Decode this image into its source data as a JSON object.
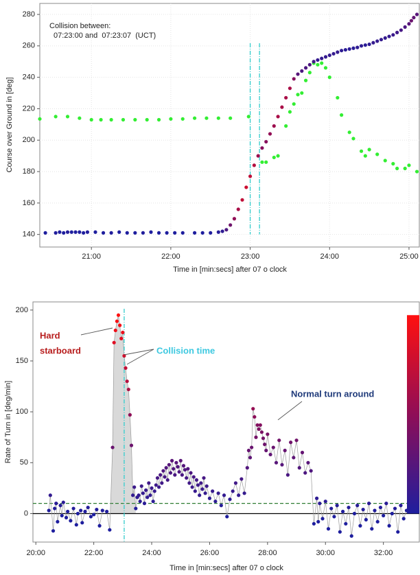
{
  "chart_data": [
    {
      "type": "scatter",
      "xlabel": "Time in [min:secs] after 07 o clock",
      "ylabel": "Course over Ground in [deg]",
      "xlim": [
        20.35,
        25.13
      ],
      "ylim": [
        132,
        287
      ],
      "xticks": [
        {
          "value": 21,
          "label": "21:00"
        },
        {
          "value": 22,
          "label": "22:00"
        },
        {
          "value": 23,
          "label": "23:00"
        },
        {
          "value": 24,
          "label": "24:00"
        },
        {
          "value": 25,
          "label": "25:00"
        }
      ],
      "yticks": [
        140,
        160,
        180,
        200,
        220,
        240,
        260,
        280
      ],
      "grid": true,
      "vlines": [
        {
          "value": 23,
          "color": "#33cccc"
        },
        {
          "value": 23.117,
          "color": "#33cccc"
        }
      ],
      "annotations": [
        {
          "lines": [
            "Collision between:",
            "07:23:00 and  07:23:07  (UCT)"
          ],
          "color": "#222222"
        }
      ],
      "series": [
        {
          "color": "#33ee33",
          "x": [
            20.35,
            20.55,
            20.7,
            20.85,
            21.0,
            21.12,
            21.25,
            21.4,
            21.55,
            21.7,
            21.85,
            22.0,
            22.15,
            22.3,
            22.45,
            22.6,
            22.75,
            22.98,
            23.15,
            23.2,
            23.3,
            23.35,
            23.45,
            23.5,
            23.55,
            23.6,
            23.65,
            23.7,
            23.75,
            23.8,
            23.85,
            23.9,
            23.95,
            24.0,
            24.1,
            24.15,
            24.25,
            24.3,
            24.4,
            24.45,
            24.5,
            24.6,
            24.7,
            24.8,
            24.85,
            24.95,
            25.0,
            25.1
          ],
          "values": [
            213.5,
            215,
            215,
            214,
            213,
            213,
            213,
            213,
            213,
            213,
            213,
            213.5,
            213.5,
            214,
            214,
            214,
            214,
            215,
            186,
            186,
            189,
            190,
            209,
            218,
            223,
            229,
            230,
            238,
            243,
            249,
            248,
            249,
            246,
            240,
            227,
            216,
            205,
            201,
            193,
            190,
            194,
            191,
            187,
            185,
            182,
            182,
            184,
            180
          ]
        },
        {
          "colormap": [
            "#1e1e9e",
            "#ff1010"
          ],
          "colormap_lim": [
            0,
            195
          ],
          "x": [
            20.42,
            20.55,
            20.6,
            20.65,
            20.7,
            20.75,
            20.8,
            20.85,
            20.9,
            20.95,
            21.05,
            21.15,
            21.25,
            21.35,
            21.45,
            21.55,
            21.65,
            21.75,
            21.85,
            21.95,
            22.05,
            22.15,
            22.3,
            22.4,
            22.5,
            22.6,
            22.65,
            22.7,
            22.75,
            22.8,
            22.85,
            22.9,
            22.95,
            23.0,
            23.05,
            23.1,
            23.15,
            23.2,
            23.25,
            23.3,
            23.35,
            23.4,
            23.45,
            23.5,
            23.55,
            23.6,
            23.65,
            23.7,
            23.75,
            23.8,
            23.85,
            23.9,
            23.95,
            24.0,
            24.05,
            24.1,
            24.15,
            24.2,
            24.25,
            24.3,
            24.35,
            24.4,
            24.45,
            24.5,
            24.55,
            24.6,
            24.65,
            24.7,
            24.75,
            24.8,
            24.85,
            24.9,
            24.95,
            25.0,
            25.03,
            25.06,
            25.1
          ],
          "values": [
            141,
            141,
            141.5,
            141,
            141.5,
            141.5,
            141.5,
            141.5,
            141,
            141.5,
            141.5,
            141,
            141,
            141.5,
            141,
            141,
            141,
            141.5,
            141,
            141,
            141,
            141,
            141,
            141,
            141,
            141.5,
            142,
            143,
            146,
            150,
            156,
            162,
            170,
            177,
            184,
            190,
            195,
            199,
            204,
            209,
            215,
            221,
            227,
            233,
            239,
            242,
            244,
            246,
            248,
            250,
            251,
            252,
            253,
            254,
            255,
            256,
            257,
            257.5,
            258,
            258.5,
            259,
            260,
            260.5,
            261,
            262,
            263,
            264,
            265,
            266,
            267,
            268.5,
            270,
            272,
            274,
            276,
            278,
            280
          ]
        }
      ]
    },
    {
      "type": "scatter",
      "xlabel": "Time in [min:secs] after 07 o clock",
      "ylabel": "Rate of Turn in [deg/min]",
      "xlim": [
        19.9,
        33.24
      ],
      "ylim": [
        -28,
        208
      ],
      "xticks": [
        {
          "value": 20,
          "label": "20:00"
        },
        {
          "value": 22,
          "label": "22:00"
        },
        {
          "value": 24,
          "label": "24:00"
        },
        {
          "value": 26,
          "label": "26:00"
        },
        {
          "value": 28,
          "label": "28:00"
        },
        {
          "value": 30,
          "label": "30:00"
        },
        {
          "value": 32,
          "label": "32:00"
        }
      ],
      "yticks": [
        0,
        50,
        100,
        150,
        200
      ],
      "grid": false,
      "vlines": [
        {
          "value": 23.05,
          "color": "#33cccc"
        }
      ],
      "hlines": [
        {
          "value": 10,
          "color": "#2e7d32",
          "dash": true
        },
        {
          "value": 0,
          "color": "#000000",
          "dash": false
        }
      ],
      "line_color": "#9a9a9a",
      "shade": {
        "xlim": [
          22.55,
          23.45
        ],
        "color": "#d9d9d9"
      },
      "colorbar": true,
      "annotations": [
        {
          "lines": [
            "Hard",
            "starboard"
          ],
          "color": "#b71c1c"
        },
        {
          "lines": [
            "Collision time"
          ],
          "color": "#3cc8e0"
        },
        {
          "lines": [
            "Normal turn around"
          ],
          "color": "#1f3a7a"
        }
      ],
      "series": [
        {
          "colormap": [
            "#1e1e9e",
            "#ff1010"
          ],
          "colormap_lim": [
            0,
            195
          ],
          "x": [
            20.45,
            20.5,
            20.6,
            20.65,
            20.7,
            20.75,
            20.85,
            20.9,
            20.95,
            21.05,
            21.1,
            21.2,
            21.3,
            21.4,
            21.45,
            21.55,
            21.6,
            21.7,
            21.8,
            21.9,
            22.0,
            22.1,
            22.2,
            22.3,
            22.45,
            22.55,
            22.65,
            22.7,
            22.75,
            22.8,
            22.85,
            22.9,
            22.95,
            23.0,
            23.05,
            23.1,
            23.15,
            23.2,
            23.25,
            23.3,
            23.35,
            23.4,
            23.45,
            23.5,
            23.55,
            23.6,
            23.65,
            23.7,
            23.75,
            23.8,
            23.85,
            23.9,
            23.95,
            24.0,
            24.05,
            24.1,
            24.15,
            24.2,
            24.25,
            24.3,
            24.35,
            24.4,
            24.45,
            24.5,
            24.55,
            24.6,
            24.65,
            24.7,
            24.75,
            24.8,
            24.85,
            24.9,
            24.95,
            25.0,
            25.05,
            25.1,
            25.15,
            25.2,
            25.25,
            25.3,
            25.35,
            25.4,
            25.45,
            25.5,
            25.55,
            25.6,
            25.65,
            25.7,
            25.75,
            25.8,
            25.85,
            25.9,
            26.0,
            26.1,
            26.2,
            26.3,
            26.4,
            26.5,
            26.6,
            26.7,
            26.8,
            26.9,
            27.0,
            27.1,
            27.2,
            27.3,
            27.35,
            27.4,
            27.45,
            27.5,
            27.55,
            27.6,
            27.65,
            27.7,
            27.75,
            27.8,
            27.85,
            27.9,
            27.95,
            28.0,
            28.1,
            28.2,
            28.3,
            28.4,
            28.5,
            28.6,
            28.7,
            28.8,
            28.9,
            29.0,
            29.1,
            29.2,
            29.3,
            29.4,
            29.5,
            29.6,
            29.7,
            29.75,
            29.8,
            29.9,
            30.0,
            30.1,
            30.2,
            30.3,
            30.4,
            30.5,
            30.6,
            30.7,
            30.8,
            30.9,
            31.0,
            31.1,
            31.2,
            31.3,
            31.4,
            31.5,
            31.6,
            31.7,
            31.8,
            31.9,
            32.0,
            32.1,
            32.2,
            32.3,
            32.4,
            32.5,
            32.6,
            32.7,
            32.8,
            32.9
          ],
          "values": [
            3,
            18,
            -17,
            5,
            10,
            -8,
            8,
            -2,
            11,
            -4,
            2,
            -7,
            5,
            -11,
            0,
            3,
            -9,
            2,
            6,
            -3,
            -1,
            4,
            -12,
            3,
            2,
            -16,
            65,
            168,
            180,
            189,
            195,
            185,
            172,
            178,
            155,
            143,
            130,
            122,
            97,
            67,
            18,
            26,
            5,
            16,
            18,
            12,
            27,
            20,
            10,
            23,
            16,
            30,
            18,
            25,
            12,
            22,
            28,
            35,
            26,
            38,
            30,
            42,
            36,
            45,
            33,
            48,
            40,
            52,
            44,
            38,
            50,
            46,
            41,
            52,
            38,
            47,
            43,
            35,
            44,
            30,
            40,
            26,
            36,
            22,
            33,
            28,
            18,
            30,
            24,
            35,
            20,
            27,
            15,
            22,
            12,
            20,
            8,
            18,
            -3,
            14,
            22,
            30,
            18,
            34,
            20,
            45,
            62,
            55,
            65,
            103,
            95,
            75,
            87,
            83,
            87,
            80,
            74,
            68,
            62,
            78,
            58,
            65,
            50,
            72,
            48,
            62,
            38,
            70,
            55,
            72,
            45,
            60,
            40,
            50,
            42,
            -10,
            15,
            -8,
            10,
            -5,
            12,
            -15,
            5,
            -3,
            8,
            -18,
            2,
            -10,
            6,
            -22,
            0,
            8,
            -12,
            4,
            -6,
            10,
            -15,
            3,
            -8,
            6,
            -2,
            10,
            -12,
            0,
            5,
            -18,
            8,
            -5,
            3,
            10
          ]
        }
      ]
    }
  ]
}
